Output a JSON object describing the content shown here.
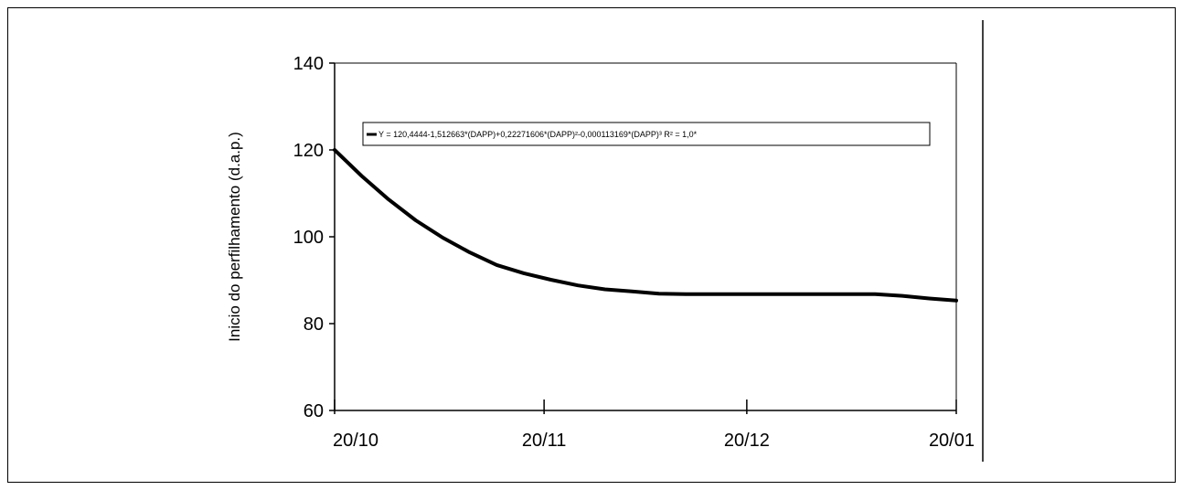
{
  "chart_data": {
    "type": "line",
    "title": "",
    "ylabel": "Inicio do perfilhamento (d.a.p.)",
    "xlabel": "",
    "x_ticks": [
      "20/10",
      "20/11",
      "20/12",
      "20/01"
    ],
    "x_tick_days": [
      0,
      31,
      61,
      92
    ],
    "xlim": [
      0,
      92
    ],
    "y_ticks": [
      60,
      80,
      100,
      120,
      140
    ],
    "ylim": [
      60,
      140
    ],
    "grid": false,
    "legend_position": "top",
    "series": [
      {
        "name": "Y = 120,4444-1,512663*(DAPP)+0,22271606*(DAPP)²-0,000113169*(DAPP)³  R² = 1,0*",
        "x": [
          0,
          4,
          8,
          12,
          16,
          20,
          24,
          28,
          32,
          36,
          40,
          44,
          48,
          52,
          56,
          60,
          64,
          68,
          72,
          76,
          80,
          84,
          88,
          92
        ],
        "y": [
          120,
          114,
          108.6,
          103.8,
          99.8,
          96.4,
          93.5,
          91.6,
          90.1,
          88.8,
          87.9,
          87.4,
          86.9,
          86.8,
          86.8,
          86.8,
          86.8,
          86.8,
          86.8,
          86.8,
          86.8,
          86.4,
          85.8,
          85.3
        ],
        "color": "#000000"
      }
    ]
  }
}
